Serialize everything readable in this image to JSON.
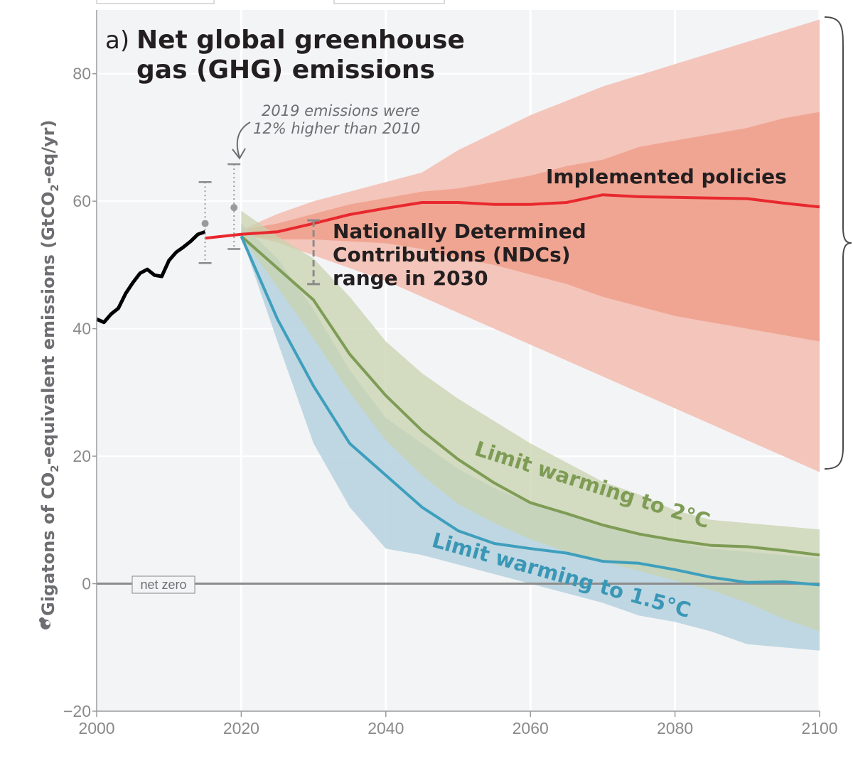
{
  "chart_data": {
    "type": "area",
    "panel_label": "a)",
    "title_lines": [
      "Net global greenhouse",
      "gas (GHG) emissions"
    ],
    "ylabel_parts": [
      "Gigatons of CO",
      "2",
      "-equivalent emissions (GtCO",
      "2",
      "-eq/yr)"
    ],
    "xlim": [
      2000,
      2100
    ],
    "ylim": [
      -20,
      80
    ],
    "x_ticks": [
      2000,
      2020,
      2040,
      2060,
      2080,
      2100
    ],
    "y_ticks": [
      -20,
      0,
      20,
      40,
      60,
      80
    ],
    "y_tick_labels": [
      "−20",
      "0",
      "20",
      "40",
      "60",
      "80"
    ],
    "grid": true,
    "colors": {
      "historical": "#000000",
      "implemented": "#e8282e",
      "implemented_outer": "#f3c2b6",
      "implemented_inner": "#ef9f8c",
      "warming_2c": "#7e9c55",
      "warming_2c_band": "#c8d3ae",
      "warming_15c": "#3e9fbd",
      "warming_15c_band": "#b9d4e0",
      "gridline": "#ffffff",
      "background": "#f3f4f6"
    },
    "historical": {
      "x": [
        2000,
        2001,
        2002,
        2003,
        2004,
        2005,
        2006,
        2007,
        2008,
        2009,
        2010,
        2011,
        2012,
        2013,
        2014,
        2015
      ],
      "y": [
        41.5,
        41.0,
        42.3,
        43.2,
        45.5,
        47.2,
        48.7,
        49.3,
        48.4,
        48.2,
        50.7,
        52.0,
        52.8,
        53.7,
        54.8,
        55.2
      ]
    },
    "implemented_policies": {
      "name": "Implemented policies",
      "x": [
        2015,
        2020,
        2025,
        2030,
        2035,
        2040,
        2045,
        2050,
        2055,
        2060,
        2065,
        2070,
        2075,
        2080,
        2085,
        2090,
        2095,
        2100
      ],
      "y": [
        54.2,
        54.8,
        55.2,
        56.5,
        57.9,
        58.9,
        59.8,
        59.8,
        59.5,
        59.5,
        59.8,
        61.0,
        60.7,
        60.6,
        60.5,
        60.4,
        59.7,
        59.1
      ],
      "outer_band_x": [
        2020,
        2025,
        2030,
        2035,
        2040,
        2045,
        2050,
        2060,
        2070,
        2080,
        2090,
        2100
      ],
      "outer_band_low": [
        55.0,
        53.5,
        51.5,
        49.5,
        47.5,
        45.0,
        42.5,
        37.5,
        32.5,
        27.5,
        22.5,
        17.5
      ],
      "outer_band_high": [
        55.5,
        58.0,
        60.0,
        61.5,
        63.0,
        64.5,
        68.0,
        73.5,
        78.0,
        81.5,
        85.0,
        88.5
      ],
      "inner_band_x": [
        2020,
        2025,
        2030,
        2035,
        2040,
        2045,
        2050,
        2055,
        2060,
        2065,
        2070,
        2075,
        2080,
        2085,
        2090,
        2095,
        2100
      ],
      "inner_band_low": [
        54.5,
        54.0,
        54.0,
        53.7,
        53.4,
        52.5,
        51.0,
        50.0,
        48.5,
        47.0,
        45.0,
        43.5,
        42.0,
        41.0,
        40.0,
        39.0,
        38.0
      ],
      "inner_band_high": [
        55.5,
        56.5,
        58.0,
        59.5,
        60.5,
        61.5,
        62.0,
        63.0,
        64.0,
        65.5,
        66.5,
        68.5,
        69.5,
        70.5,
        71.5,
        73.0,
        74.0
      ]
    },
    "warming_2c": {
      "name": "Limit warming to 2°C",
      "x": [
        2020,
        2025,
        2030,
        2035,
        2040,
        2045,
        2050,
        2055,
        2060,
        2065,
        2070,
        2075,
        2080,
        2085,
        2090,
        2095,
        2100
      ],
      "y": [
        54.5,
        49.5,
        44.5,
        36.0,
        29.5,
        24.0,
        19.5,
        15.8,
        12.7,
        11.0,
        9.2,
        7.8,
        6.8,
        6.0,
        5.8,
        5.2,
        4.5
      ],
      "band_low": [
        54.5,
        46.5,
        38.5,
        30.0,
        22.5,
        17.0,
        12.5,
        9.5,
        7.0,
        5.0,
        3.5,
        2.0,
        0.5,
        -1.0,
        -3.0,
        -5.5,
        -7.5
      ],
      "band_high": [
        58.5,
        54.5,
        51.0,
        45.0,
        38.0,
        33.0,
        29.0,
        25.5,
        22.0,
        19.0,
        16.0,
        14.0,
        11.5,
        10.0,
        9.5,
        9.0,
        8.5
      ]
    },
    "warming_15c": {
      "name": "Limit warming to 1.5°C",
      "x": [
        2020,
        2025,
        2030,
        2035,
        2040,
        2045,
        2050,
        2055,
        2060,
        2065,
        2070,
        2075,
        2080,
        2085,
        2090,
        2095,
        2100
      ],
      "y": [
        54.5,
        41.5,
        31.0,
        22.0,
        17.0,
        12.0,
        8.3,
        6.3,
        5.5,
        4.8,
        3.5,
        3.2,
        2.2,
        1.0,
        0.2,
        0.3,
        -0.2
      ],
      "band_low": [
        54.5,
        38.0,
        22.0,
        12.0,
        5.5,
        4.5,
        3.0,
        1.5,
        0.0,
        -1.5,
        -3.0,
        -5.0,
        -6.0,
        -7.5,
        -9.5,
        -10.0,
        -10.5
      ],
      "band_high": [
        56.5,
        51.0,
        43.0,
        33.5,
        26.0,
        22.0,
        18.0,
        15.0,
        12.5,
        11.0,
        9.0,
        7.5,
        6.5,
        5.5,
        5.0,
        4.5,
        4.0
      ]
    },
    "error_bars": [
      {
        "x": 2015,
        "y": 56.5,
        "low": 50.3,
        "high": 63.0
      },
      {
        "x": 2019,
        "y": 59.0,
        "low": 52.5,
        "high": 65.8
      }
    ],
    "ndc_range": {
      "x": 2030,
      "low": 47.0,
      "high": 57.0
    },
    "annotations": {
      "emissions_note": [
        "2019 emissions were",
        "12% higher than 2010"
      ],
      "ndc_label": [
        "Nationally Determined",
        "Contributions (NDCs)",
        "range in 2030"
      ],
      "implemented_label": "Implemented policies",
      "label_2c": "Limit warming to 2°C",
      "label_15c": "Limit warming to 1.5°C",
      "net_zero": "net zero"
    }
  }
}
